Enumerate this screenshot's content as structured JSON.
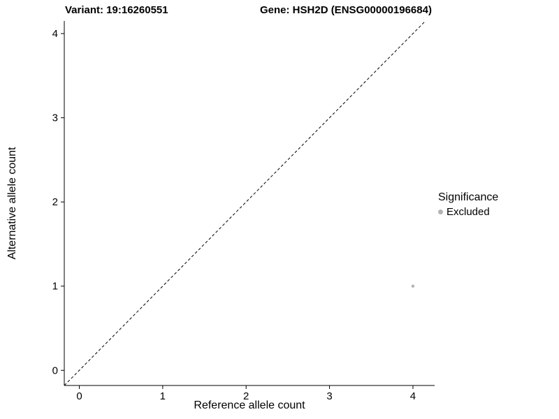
{
  "chart_data": {
    "type": "scatter",
    "title_left": "Variant: 19:16260551",
    "title_right": "Gene: HSH2D (ENSG00000196684)",
    "xlabel": "Reference allele count",
    "ylabel": "Alternative allele count",
    "xlim": [
      -0.18,
      4.26
    ],
    "ylim": [
      -0.18,
      4.15
    ],
    "xticks": [
      0,
      1,
      2,
      3,
      4
    ],
    "yticks": [
      0,
      1,
      2,
      3,
      4
    ],
    "grid": "off",
    "identity_line": {
      "style": "dashed",
      "equation": "y = x",
      "color": "#000000"
    },
    "series": [
      {
        "name": "Excluded",
        "color": "#b3b3b3",
        "point_radius": 2.2,
        "points": [
          [
            4,
            1
          ]
        ]
      }
    ],
    "legend": {
      "position": "right",
      "title": "Significance",
      "items": [
        {
          "label": "Excluded",
          "color": "#b3b3b3"
        }
      ]
    }
  }
}
